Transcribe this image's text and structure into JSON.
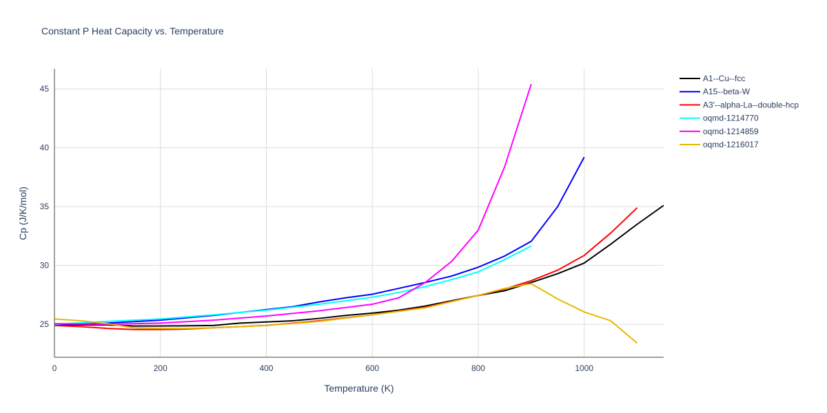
{
  "chart_data": {
    "type": "line",
    "title": "Constant P Heat Capacity vs. Temperature",
    "xlabel": "Temperature (K)",
    "ylabel": "Cp (J/K/mol)",
    "xlim": [
      0,
      1150
    ],
    "ylim": [
      22.2,
      46.7
    ],
    "xticks": [
      0,
      200,
      400,
      600,
      800,
      1000
    ],
    "yticks": [
      25,
      30,
      35,
      40,
      45
    ],
    "grid": true,
    "legend_placement": "top-right outside",
    "series": [
      {
        "name": "A1--Cu--fcc",
        "color": "#000000",
        "x": [
          0,
          100,
          150,
          200,
          300,
          350,
          400,
          450,
          500,
          550,
          600,
          650,
          700,
          750,
          800,
          850,
          900,
          950,
          1000,
          1050,
          1100,
          1150
        ],
        "y": [
          24.95,
          24.95,
          24.85,
          24.85,
          24.9,
          25.1,
          25.2,
          25.3,
          25.5,
          25.75,
          25.95,
          26.2,
          26.55,
          27.0,
          27.45,
          27.85,
          28.55,
          29.3,
          30.2,
          31.8,
          33.5,
          35.1
        ]
      },
      {
        "name": "A15--beta-W",
        "color": "#0000ff",
        "x": [
          0,
          100,
          200,
          300,
          400,
          450,
          500,
          550,
          600,
          650,
          700,
          750,
          800,
          850,
          900,
          950,
          1000
        ],
        "y": [
          24.95,
          25.1,
          25.35,
          25.75,
          26.25,
          26.5,
          26.9,
          27.25,
          27.55,
          28.05,
          28.55,
          29.1,
          29.85,
          30.8,
          32.05,
          35.0,
          39.2
        ]
      },
      {
        "name": "A3'--alpha-La--double-hcp",
        "color": "#ff0000",
        "x": [
          0,
          50,
          100,
          150,
          200,
          250,
          300,
          400,
          500,
          600,
          700,
          800,
          850,
          900,
          950,
          1000,
          1050,
          1100
        ],
        "y": [
          24.9,
          24.8,
          24.65,
          24.55,
          24.55,
          24.6,
          24.7,
          24.9,
          25.3,
          25.8,
          26.45,
          27.45,
          28.0,
          28.7,
          29.6,
          30.85,
          32.75,
          34.9
        ]
      },
      {
        "name": "oqmd-1214770",
        "color": "#00ffff",
        "x": [
          0,
          100,
          200,
          300,
          400,
          500,
          600,
          650,
          700,
          750,
          800,
          850,
          900
        ],
        "y": [
          25.0,
          25.25,
          25.45,
          25.8,
          26.2,
          26.7,
          27.3,
          27.7,
          28.2,
          28.8,
          29.45,
          30.5,
          31.65
        ]
      },
      {
        "name": "oqmd-1214859",
        "color": "#ff00ff",
        "x": [
          0,
          100,
          200,
          300,
          400,
          500,
          600,
          650,
          700,
          750,
          800,
          850,
          900
        ],
        "y": [
          25.05,
          25.0,
          25.1,
          25.35,
          25.7,
          26.15,
          26.7,
          27.25,
          28.55,
          30.35,
          33.0,
          38.4,
          45.4
        ]
      },
      {
        "name": "oqmd-1216017",
        "color": "#e6b800",
        "x": [
          0,
          50,
          100,
          150,
          200,
          250,
          300,
          400,
          500,
          600,
          700,
          800,
          850,
          900,
          950,
          1000,
          1050,
          1100
        ],
        "y": [
          25.45,
          25.3,
          25.05,
          24.7,
          24.65,
          24.65,
          24.7,
          24.9,
          25.25,
          25.8,
          26.4,
          27.45,
          28.05,
          28.45,
          27.15,
          26.05,
          25.3,
          23.4
        ]
      }
    ]
  }
}
